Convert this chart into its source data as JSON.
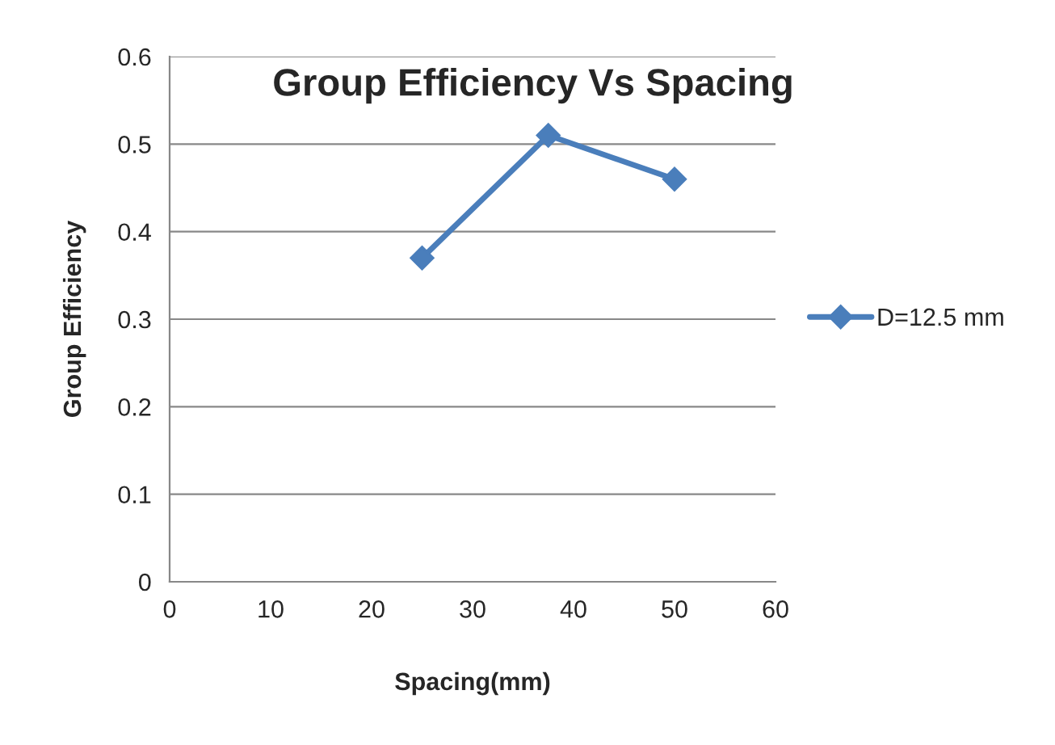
{
  "chart_data": {
    "type": "line",
    "title": "Group Efficiency Vs Spacing",
    "xlabel": "Spacing(mm)",
    "ylabel": "Group Efficiency",
    "x": [
      25,
      37.5,
      50
    ],
    "series": [
      {
        "name": "D=12.5 mm",
        "color": "#4a7ebb",
        "values": [
          0.37,
          0.51,
          0.46
        ]
      }
    ],
    "xlim": [
      0,
      60
    ],
    "xticks": [
      0,
      10,
      20,
      30,
      40,
      50,
      60
    ],
    "ylim": [
      0,
      0.6
    ],
    "yticks": [
      0,
      0.1,
      0.2,
      0.3,
      0.4,
      0.5,
      0.6
    ],
    "grid": "y",
    "legend": "right",
    "marker": "diamond",
    "line_style": "solid"
  }
}
